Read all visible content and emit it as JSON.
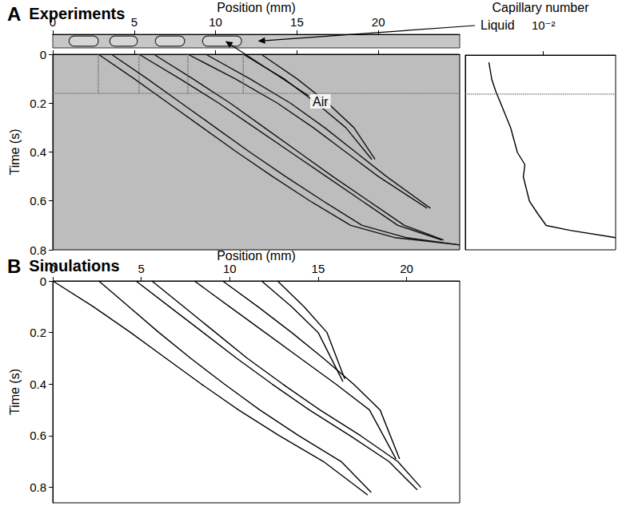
{
  "chart_data": [
    {
      "type": "rect",
      "title": "A",
      "subtitle": "Experiments",
      "x_label": "Position (mm)",
      "xlim": [
        0,
        25
      ],
      "xticks": [
        0,
        5,
        10,
        15,
        20
      ],
      "plugs": [
        [
          1.0,
          2.8
        ],
        [
          3.5,
          5.2
        ],
        [
          6.3,
          8.1
        ],
        [
          9.2,
          11.6
        ]
      ],
      "annotations": [
        {
          "text": "Liquid",
          "x": 12.6
        },
        {
          "text": "Air",
          "x": 10.6
        }
      ]
    },
    {
      "type": "line",
      "y_label": "Time (s)",
      "tick_labels": "y",
      "xlim": [
        0,
        25
      ],
      "xticks": [
        0,
        5,
        10,
        15,
        20
      ],
      "ylim": [
        0,
        0.8
      ],
      "yticks": [
        0,
        0.2,
        0.4,
        0.6,
        0.8
      ],
      "series": [
        {
          "color": "#111111",
          "x": [
            11.7,
            14.2,
            16.2,
            18.0,
            19.6
          ],
          "values": [
            0,
            0.1,
            0.2,
            0.3,
            0.43
          ]
        },
        {
          "color": "#111111",
          "x": [
            12.8,
            15.0,
            16.9,
            18.5,
            19.8
          ],
          "values": [
            0,
            0.1,
            0.2,
            0.3,
            0.43
          ]
        },
        {
          "color": "#111111",
          "x": [
            8.3,
            11.2,
            13.8,
            16.0,
            18.0,
            20.0,
            23.0
          ],
          "values": [
            0,
            0.1,
            0.2,
            0.3,
            0.4,
            0.5,
            0.63
          ]
        },
        {
          "color": "#111111",
          "x": [
            9.4,
            12.1,
            14.6,
            16.7,
            18.6,
            20.5,
            23.2
          ],
          "values": [
            0,
            0.1,
            0.2,
            0.3,
            0.4,
            0.5,
            0.63
          ]
        },
        {
          "color": "#111111",
          "x": [
            5.3,
            7.8,
            10.2,
            12.4,
            14.6,
            16.8,
            19.0,
            21.2,
            23.9
          ],
          "values": [
            0,
            0.1,
            0.2,
            0.3,
            0.4,
            0.5,
            0.6,
            0.7,
            0.76
          ]
        },
        {
          "color": "#111111",
          "x": [
            6.2,
            8.6,
            10.9,
            13.0,
            15.1,
            17.2,
            19.4,
            21.6,
            24.0
          ],
          "values": [
            0,
            0.1,
            0.2,
            0.3,
            0.4,
            0.5,
            0.6,
            0.7,
            0.76
          ]
        },
        {
          "color": "#111111",
          "x": [
            2.8,
            5.0,
            7.1,
            9.2,
            11.3,
            13.5,
            15.8,
            18.3,
            21.0,
            25.0
          ],
          "values": [
            0,
            0.1,
            0.2,
            0.3,
            0.4,
            0.5,
            0.6,
            0.7,
            0.75,
            0.78
          ]
        },
        {
          "color": "#111111",
          "x": [
            3.6,
            5.8,
            7.9,
            10.0,
            12.1,
            14.3,
            16.6,
            19.0,
            21.7,
            25.0
          ],
          "values": [
            0,
            0.1,
            0.2,
            0.3,
            0.4,
            0.5,
            0.6,
            0.7,
            0.75,
            0.78
          ]
        }
      ],
      "guides": {
        "x": [
          2.8,
          5.3,
          8.3,
          11.7
        ],
        "x_end": 0.16,
        "y": 0.16,
        "color": "#555555",
        "line_style": "dotted"
      }
    },
    {
      "type": "line",
      "x_label": "Capillary number",
      "log": "x",
      "tick_labels": "x",
      "xlim": [
        0.0025,
        0.036
      ],
      "xticks": [
        {
          "value": 0.01,
          "label": "10⁻²"
        }
      ],
      "ylim": [
        0,
        0.8
      ],
      "series": [
        {
          "color": "#000000",
          "x": [
            0.0038,
            0.004,
            0.0043,
            0.0047,
            0.0056,
            0.0063,
            0.0072,
            0.007,
            0.0078,
            0.009,
            0.0105,
            0.016,
            0.036
          ],
          "values": [
            0.03,
            0.1,
            0.15,
            0.2,
            0.3,
            0.4,
            0.45,
            0.5,
            0.6,
            0.65,
            0.7,
            0.72,
            0.75
          ]
        }
      ],
      "guides": {
        "y": 0.16,
        "color": "#555555",
        "line_style": "dotted"
      }
    },
    {
      "type": "line",
      "title": "B",
      "subtitle": "Simulations",
      "x_label": "Position (mm)",
      "y_label": "Time (s)",
      "xlim": [
        0,
        23
      ],
      "xticks": [
        0,
        5,
        10,
        15,
        20
      ],
      "ylim": [
        0,
        0.86
      ],
      "yticks": [
        0,
        0.2,
        0.4,
        0.6,
        0.8
      ],
      "series": [
        {
          "color": "#000000",
          "x": [
            0,
            2.3,
            4.4,
            6.4,
            8.4,
            10.5,
            12.8,
            15.3,
            17.8
          ],
          "values": [
            0,
            0.1,
            0.2,
            0.3,
            0.4,
            0.5,
            0.6,
            0.7,
            0.83
          ]
        },
        {
          "color": "#000000",
          "x": [
            2.6,
            4.3,
            6.0,
            7.8,
            9.7,
            11.7,
            13.9,
            16.3,
            18.0
          ],
          "values": [
            0,
            0.1,
            0.2,
            0.3,
            0.4,
            0.5,
            0.6,
            0.7,
            0.82
          ]
        },
        {
          "color": "#000000",
          "x": [
            4.7,
            6.6,
            8.5,
            10.4,
            12.4,
            14.5,
            16.8,
            19.0,
            20.6
          ],
          "values": [
            0,
            0.1,
            0.2,
            0.3,
            0.4,
            0.5,
            0.6,
            0.7,
            0.81
          ]
        },
        {
          "color": "#000000",
          "x": [
            5.6,
            7.4,
            9.2,
            11.0,
            13.0,
            15.1,
            17.4,
            19.5,
            20.8
          ],
          "values": [
            0,
            0.1,
            0.2,
            0.3,
            0.4,
            0.5,
            0.6,
            0.7,
            0.8
          ]
        },
        {
          "color": "#000000",
          "x": [
            8.0,
            10.0,
            12.0,
            14.0,
            16.0,
            17.9,
            19.4
          ],
          "values": [
            0,
            0.1,
            0.2,
            0.3,
            0.4,
            0.5,
            0.69
          ]
        },
        {
          "color": "#000000",
          "x": [
            9.6,
            11.6,
            13.5,
            15.3,
            17.0,
            18.5,
            19.6
          ],
          "values": [
            0,
            0.1,
            0.2,
            0.3,
            0.4,
            0.5,
            0.69
          ]
        },
        {
          "color": "#000000",
          "x": [
            11.8,
            13.5,
            15.0,
            16.4
          ],
          "values": [
            0,
            0.1,
            0.2,
            0.39
          ]
        },
        {
          "color": "#000000",
          "x": [
            12.7,
            14.2,
            15.5,
            16.5
          ],
          "values": [
            0,
            0.1,
            0.2,
            0.38
          ]
        }
      ]
    }
  ]
}
